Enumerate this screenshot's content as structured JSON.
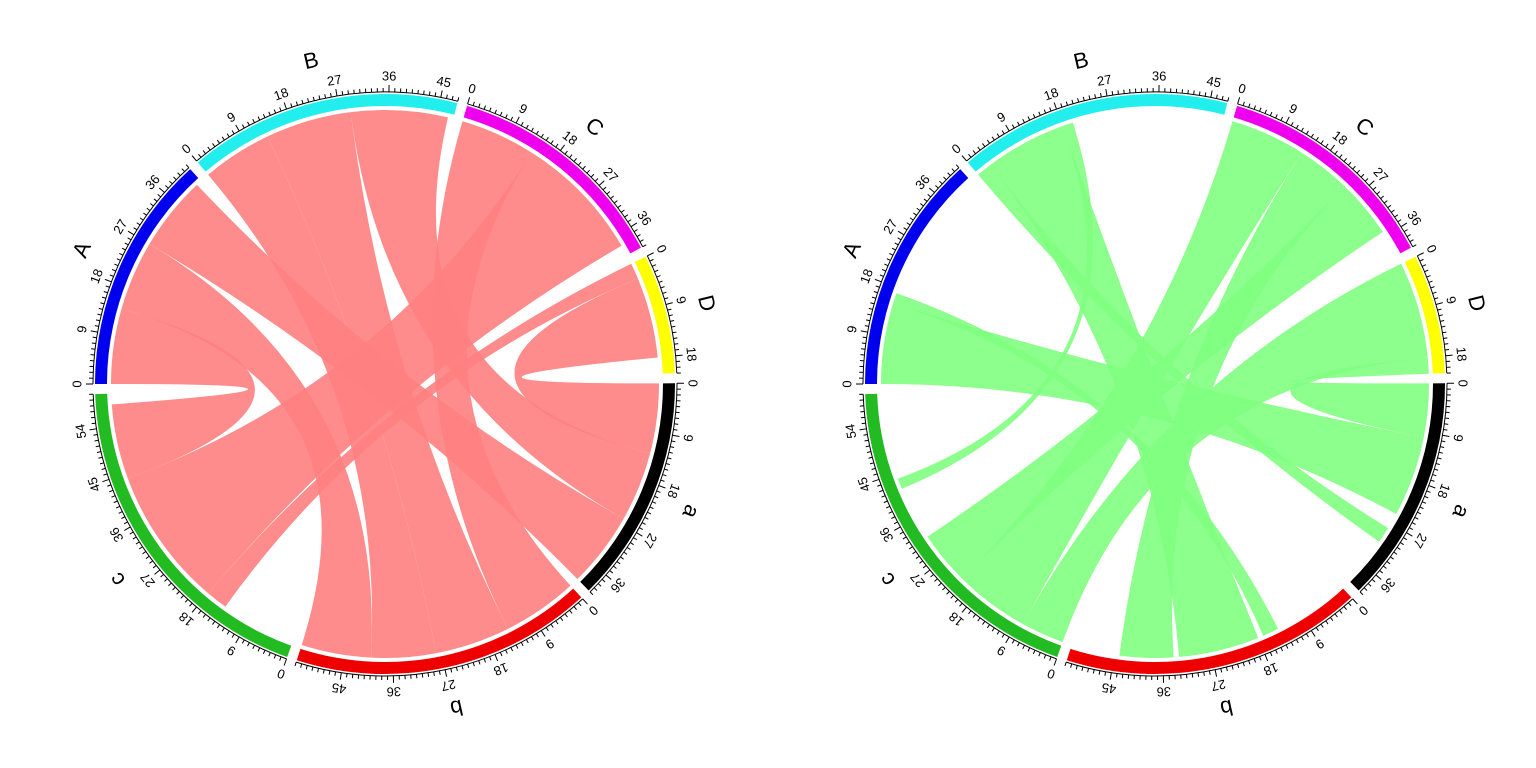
{
  "diagram": {
    "type": "chord",
    "sectors": [
      {
        "name": "A",
        "max": 42,
        "ticks": [
          0,
          9,
          18,
          27,
          36
        ],
        "color": "#0000ee"
      },
      {
        "name": "B",
        "max": 48,
        "ticks": [
          0,
          9,
          18,
          27,
          36,
          45
        ],
        "color": "#22eeee"
      },
      {
        "name": "C",
        "max": 40,
        "ticks": [
          0,
          9,
          18,
          27,
          36
        ],
        "color": "#ee00ee"
      },
      {
        "name": "D",
        "max": 21,
        "ticks": [
          0,
          9,
          18
        ],
        "color": "#ffff00"
      },
      {
        "name": "a",
        "max": 40,
        "ticks": [
          0,
          9,
          18,
          27,
          36
        ],
        "color": "#000000"
      },
      {
        "name": "b",
        "max": 53,
        "ticks": [
          0,
          9,
          18,
          27,
          36,
          45
        ],
        "color": "#ee0000"
      },
      {
        "name": "c",
        "max": 60,
        "ticks": [
          0,
          9,
          18,
          27,
          36,
          45,
          54
        ],
        "color": "#22bb22"
      }
    ],
    "panels": [
      {
        "link_color": "#ff7f7f",
        "start_degree": 180,
        "links": [
          {
            "from": "A",
            "from_range": [
              0,
              14
            ],
            "to": "c",
            "to_range": [
              44,
              58
            ]
          },
          {
            "from": "A",
            "from_range": [
              14,
              27
            ],
            "to": "b",
            "to_range": [
              40,
              53
            ]
          },
          {
            "from": "A",
            "from_range": [
              27,
              41
            ],
            "to": "a",
            "to_range": [
              26,
              40
            ]
          },
          {
            "from": "B",
            "from_range": [
              0,
              13
            ],
            "to": "b",
            "to_range": [
              28,
              40
            ]
          },
          {
            "from": "B",
            "from_range": [
              13,
              29
            ],
            "to": "b",
            "to_range": [
              14,
              28
            ]
          },
          {
            "from": "B",
            "from_range": [
              29,
              47
            ],
            "to": "a",
            "to_range": [
              13,
              26
            ]
          },
          {
            "from": "C",
            "from_range": [
              0,
              14
            ],
            "to": "b",
            "to_range": [
              0,
              14
            ]
          },
          {
            "from": "C",
            "from_range": [
              14,
              38
            ],
            "to": "c",
            "to_range": [
              18,
              44
            ]
          },
          {
            "from": "D",
            "from_range": [
              0,
              3
            ],
            "to": "c",
            "to_range": [
              14,
              18
            ]
          },
          {
            "from": "D",
            "from_range": [
              3,
              18
            ],
            "to": "a",
            "to_range": [
              0,
              13
            ]
          }
        ]
      },
      {
        "link_color": "#80ff80",
        "start_degree": 180,
        "links": [
          {
            "from": "A",
            "from_range": [
              0,
              15
            ],
            "to": "a",
            "to_range": [
              10,
              25
            ]
          },
          {
            "from": "A",
            "from_range": [
              15,
              17
            ],
            "to": "b",
            "to_range": [
              14,
              17
            ]
          },
          {
            "from": "B",
            "from_range": [
              0,
              3
            ],
            "to": "a",
            "to_range": [
              28,
              31
            ]
          },
          {
            "from": "B",
            "from_range": [
              3,
              18
            ],
            "to": "b",
            "to_range": [
              18,
              33
            ]
          },
          {
            "from": "B",
            "from_range": [
              18,
              20
            ],
            "to": "c",
            "to_range": [
              42,
              44
            ]
          },
          {
            "from": "C",
            "from_range": [
              0,
              14
            ],
            "to": "c",
            "to_range": [
              8,
              22
            ]
          },
          {
            "from": "C",
            "from_range": [
              14,
              24
            ],
            "to": "b",
            "to_range": [
              34,
              44
            ]
          },
          {
            "from": "C",
            "from_range": [
              24,
              35
            ],
            "to": "c",
            "to_range": [
              22,
              32
            ]
          },
          {
            "from": "D",
            "from_range": [
              0,
              18
            ],
            "to": "c",
            "to_range": [
              0,
              8
            ]
          },
          {
            "from": "D",
            "from_range": [
              18,
              21
            ],
            "to": "a",
            "to_range": [
              0,
              10
            ]
          }
        ]
      }
    ]
  }
}
